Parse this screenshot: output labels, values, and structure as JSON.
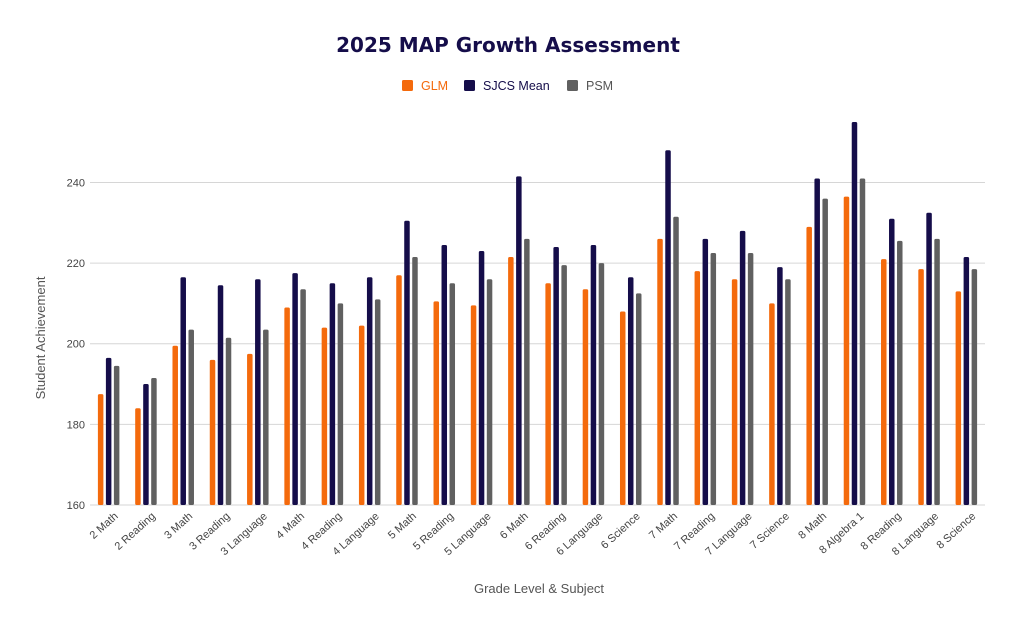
{
  "chart_data": {
    "type": "bar",
    "title": "2025 MAP Growth Assessment",
    "xlabel": "Grade Level & Subject",
    "ylabel": "Student Achievement",
    "ylim": [
      160,
      255
    ],
    "yticks": [
      160,
      180,
      200,
      220,
      240
    ],
    "grid": true,
    "legend_position": "top-center",
    "categories": [
      "2 Math",
      "2 Reading",
      "3 Math",
      "3 Reading",
      "3 Language",
      "4 Math",
      "4 Reading",
      "4 Language",
      "5 Math",
      "5 Reading",
      "5 Language",
      "6 Math",
      "6 Reading",
      "6 Language",
      "6 Science",
      "7 Math",
      "7 Reading",
      "7 Language",
      "7 Science",
      "8 Math",
      "8 Algebra 1",
      "8 Reading",
      "8 Language",
      "8 Science"
    ],
    "series": [
      {
        "name": "GLM",
        "color": "#f46a0c",
        "values": [
          187.5,
          184,
          199.5,
          196,
          197.5,
          209,
          204,
          204.5,
          217,
          210.5,
          209.5,
          221.5,
          215,
          213.5,
          208,
          226,
          218,
          216,
          210,
          229,
          236.5,
          221,
          218.5,
          213
        ]
      },
      {
        "name": "SJCS Mean",
        "color": "#150d4a",
        "values": [
          196.5,
          190,
          216.5,
          214.5,
          216,
          217.5,
          215,
          216.5,
          230.5,
          224.5,
          223,
          241.5,
          224,
          224.5,
          216.5,
          248,
          226,
          228,
          219,
          241,
          255,
          231,
          232.5,
          221.5
        ]
      },
      {
        "name": "PSM",
        "color": "#606060",
        "values": [
          194.5,
          191.5,
          203.5,
          201.5,
          203.5,
          213.5,
          210,
          211,
          221.5,
          215,
          216,
          226,
          219.5,
          220,
          212.5,
          231.5,
          222.5,
          222.5,
          216,
          236,
          241,
          225.5,
          226,
          218.5
        ]
      }
    ]
  }
}
